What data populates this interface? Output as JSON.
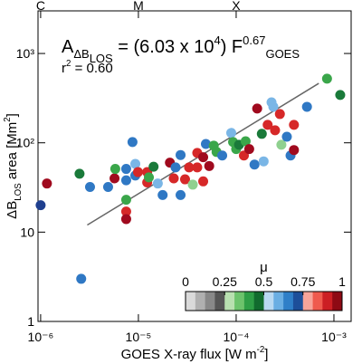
{
  "chart_data": {
    "type": "scatter",
    "equation": [
      {
        "text": "A"
      },
      {
        "text": "ΔB",
        "pos": "sub"
      },
      {
        "text": "LOS",
        "pos": "subsub"
      },
      {
        "text": " = (6.03 x 10"
      },
      {
        "text": "4",
        "pos": "sup"
      },
      {
        "text": ") F"
      },
      {
        "text": "0.67",
        "pos": "supsub"
      },
      {
        "text": "GOES",
        "pos": "sub"
      }
    ],
    "r2": [
      {
        "text": "r"
      },
      {
        "text": "2",
        "pos": "sup"
      },
      {
        "text": " =  0.60"
      }
    ],
    "x_label": [
      {
        "text": "GOES X-ray flux [W m"
      },
      {
        "text": "-2",
        "pos": "sup"
      },
      {
        "text": "]"
      }
    ],
    "y_label": [
      {
        "text": "ΔB"
      },
      {
        "text": "LOS",
        "pos": "sub"
      },
      {
        "text": " area [Mm"
      },
      {
        "text": "2",
        "pos": "sup"
      },
      {
        "text": "]"
      }
    ],
    "xlog": true,
    "ylog": true,
    "xlim": [
      9.4e-07,
      0.0015
    ],
    "ylim": [
      1,
      3000
    ],
    "xticks": [
      {
        "value": 1e-06,
        "label": "10⁻⁶"
      },
      {
        "value": 1e-05,
        "label": "10⁻⁵"
      },
      {
        "value": 0.0001,
        "label": "10⁻⁴"
      },
      {
        "value": 0.001,
        "label": "10⁻³"
      }
    ],
    "yticks": [
      1,
      10,
      {
        "value": 100,
        "label": "10²"
      },
      {
        "value": 1000,
        "label": "10³"
      }
    ],
    "x2ticks": [
      {
        "value": 1e-06,
        "label": "C"
      },
      {
        "value": 1e-05,
        "label": "M"
      },
      {
        "value": 0.0001,
        "label": "X"
      }
    ],
    "points": {
      "x": [
        1e-06,
        1.16e-06,
        2.6e-06,
        3.2e-06,
        2.5e-06,
        4.9e-06,
        5.7e-06,
        5.8e-06,
        7.5e-06,
        7.5e-06,
        7.5e-06,
        7.5e-06,
        7.5e-06,
        8.7e-06,
        9.3e-06,
        9.3e-06,
        9.9e-06,
        1.23e-05,
        1.23e-05,
        1.28e-05,
        1.43e-05,
        1.58e-05,
        1.77e-05,
        2.1e-05,
        2.3e-05,
        2.4e-05,
        2.7e-05,
        2.7e-05,
        3e-05,
        3.3e-05,
        3.6e-05,
        4e-05,
        4e-05,
        4.6e-05,
        4.6e-05,
        4.9e-05,
        5.3e-05,
        5.9e-05,
        6.3e-05,
        7.2e-05,
        8.9e-05,
        9.3e-05,
        0.0001,
        0.000107,
        0.00012,
        0.000125,
        0.000136,
        0.000154,
        0.000164,
        0.000183,
        0.000191,
        0.00021,
        0.00023,
        0.00024,
        0.00025,
        0.00028,
        0.00029,
        0.00033,
        0.00036,
        0.00039,
        0.00039,
        0.00053,
        0.00085,
        0.00116
      ],
      "y": [
        20,
        35,
        3.0,
        32,
        45,
        32,
        40,
        51,
        51,
        38,
        23,
        17,
        14,
        102,
        58,
        43,
        47,
        36,
        47,
        41,
        54,
        35,
        26,
        60,
        40,
        53,
        73,
        26,
        39,
        53,
        34,
        77,
        53,
        69,
        37,
        97,
        55,
        93,
        79,
        72,
        129,
        102,
        85,
        95,
        72,
        104,
        85,
        57,
        242,
        126,
        62,
        159,
        284,
        253,
        138,
        210,
        95,
        117,
        72,
        159,
        83,
        253,
        522,
        343
      ],
      "colors": [
        "#1f3f8f",
        "#a00a1e",
        "#2f78c4",
        "#2f78c4",
        "#1a7a3a",
        "#2f78c4",
        "#a00a1e",
        "#3aa64a",
        "#2f78c4",
        "#2f78c4",
        "#3aa64a",
        "#d62828",
        "#a00a1e",
        "#2f78c4",
        "#7ab6e6",
        "#2f78c4",
        "#d62828",
        "#d62828",
        "#d62828",
        "#3aa64a",
        "#1a7a3a",
        "#7ab6e6",
        "#2f78c4",
        "#a00a1e",
        "#d62828",
        "#2f78c4",
        "#2f78c4",
        "#2f78c4",
        "#d62828",
        "#d62828",
        "#8fd08f",
        "#d62828",
        "#d62828",
        "#a00a1e",
        "#d62828",
        "#2f78c4",
        "#a00a1e",
        "#3aa64a",
        "#3aa64a",
        "#2f78c4",
        "#7ab6e6",
        "#3aa64a",
        "#3aa64a",
        "#1a7a3a",
        "#d62828",
        "#3aa64a",
        "#a00a1e",
        "#2f78c4",
        "#a00a1e",
        "#1a7a3a",
        "#7ab6e6",
        "#d62828",
        "#7ab6e6",
        "#7ab6e6",
        "#d62828",
        "#d62828",
        "#8fd08f",
        "#2f78c4",
        "#2f78c4",
        "#d62828",
        "#a00a1e",
        "#2f78c4",
        "#3aa64a",
        "#1a7a3a"
      ]
    },
    "fit": {
      "x": [
        3e-06,
        0.0007
      ],
      "y": [
        12,
        463
      ],
      "color": "#666666"
    },
    "colorbar": {
      "label": "μ",
      "lim": [
        0,
        1
      ],
      "ticks": [
        0,
        0.25,
        0.5,
        0.75,
        1
      ],
      "colors": [
        "#dadada",
        "#b0b0b0",
        "#888888",
        "#555555",
        "#b8e0b0",
        "#6cc36c",
        "#2e9e46",
        "#116b2e",
        "#b9d9f2",
        "#6aaee3",
        "#2f7fc8",
        "#1d4f9a",
        "#f7a49a",
        "#ef5a4e",
        "#cc1f24",
        "#8e0a14"
      ]
    }
  }
}
